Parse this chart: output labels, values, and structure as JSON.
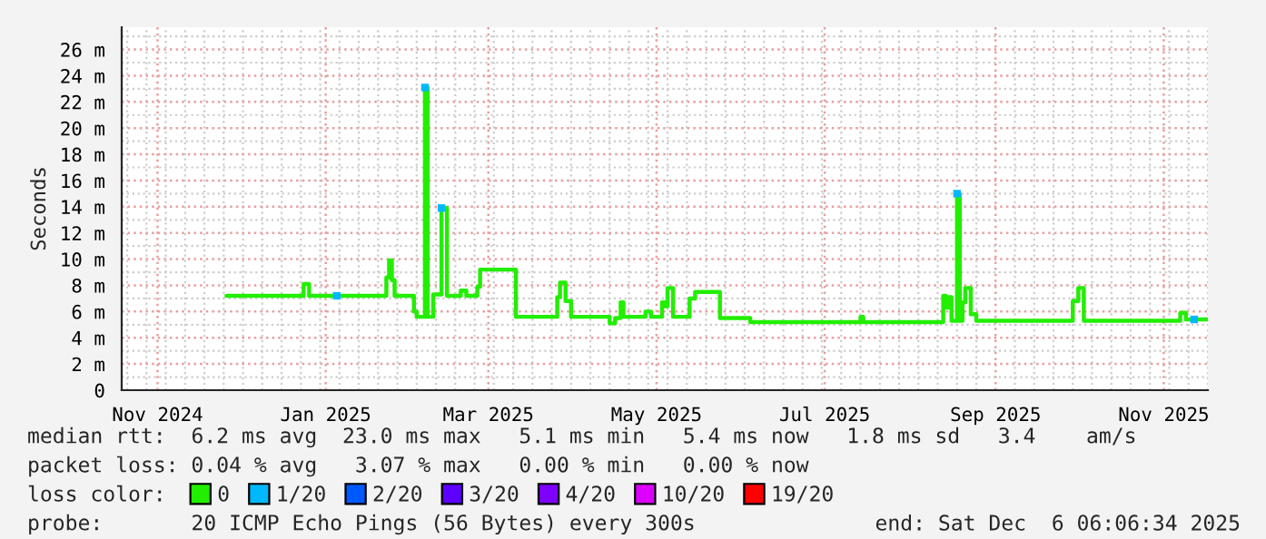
{
  "chart_data": {
    "type": "step",
    "ylabel": "Seconds",
    "xlim": [
      "2024-10-19",
      "2025-11-17"
    ],
    "xticks": [
      {
        "value": "2024-11-01",
        "label": "Nov 2024"
      },
      {
        "value": "2025-01-01",
        "label": "Jan 2025"
      },
      {
        "value": "2025-03-01",
        "label": "Mar 2025"
      },
      {
        "value": "2025-05-01",
        "label": "May 2025"
      },
      {
        "value": "2025-07-01",
        "label": "Jul 2025"
      },
      {
        "value": "2025-09-01",
        "label": "Sep 2025"
      },
      {
        "value": "2025-11-01",
        "label": "Nov 2025"
      }
    ],
    "ylim": [
      0,
      27.7
    ],
    "yticks": [
      0,
      {
        "value": 2,
        "label": "2 m"
      },
      {
        "value": 4,
        "label": "4 m"
      },
      {
        "value": 6,
        "label": "6 m"
      },
      {
        "value": 8,
        "label": "8 m"
      },
      {
        "value": 10,
        "label": "10 m"
      },
      {
        "value": 12,
        "label": "12 m"
      },
      {
        "value": 14,
        "label": "14 m"
      },
      {
        "value": 16,
        "label": "16 m"
      },
      {
        "value": 18,
        "label": "18 m"
      },
      {
        "value": 20,
        "label": "20 m"
      },
      {
        "value": 22,
        "label": "22 m"
      },
      {
        "value": 24,
        "label": "24 m"
      },
      {
        "value": 26,
        "label": "26 m"
      }
    ],
    "grid": true,
    "legend": "bottom",
    "series": [
      {
        "name": "0",
        "color": "#22ee00",
        "x": [
          "2024-11-26",
          "2024-12-24",
          "2024-12-26",
          "2025-01-23",
          "2025-01-24",
          "2025-01-25",
          "2025-01-26",
          "2025-02-02",
          "2025-02-03",
          "2025-02-06",
          "2025-02-07",
          "2025-02-09",
          "2025-02-12",
          "2025-02-14",
          "2025-02-19",
          "2025-02-21",
          "2025-02-25",
          "2025-02-26",
          "2025-03-11",
          "2025-03-26",
          "2025-03-27",
          "2025-03-29",
          "2025-03-31",
          "2025-04-14",
          "2025-04-16",
          "2025-04-18",
          "2025-04-19",
          "2025-04-27",
          "2025-04-29",
          "2025-05-03",
          "2025-05-04",
          "2025-05-05",
          "2025-05-07",
          "2025-05-13",
          "2025-05-15",
          "2025-05-24",
          "2025-06-04",
          "2025-07-14",
          "2025-07-15",
          "2025-08-13",
          "2025-08-14",
          "2025-08-15",
          "2025-08-16",
          "2025-08-18",
          "2025-08-19",
          "2025-08-20",
          "2025-08-21",
          "2025-08-23",
          "2025-08-25",
          "2025-09-29",
          "2025-10-01",
          "2025-10-03",
          "2025-11-07",
          "2025-11-09",
          "2025-11-17"
        ],
        "values": [
          7.2,
          8.1,
          7.2,
          8.6,
          9.9,
          8.4,
          7.2,
          6.0,
          5.6,
          23.1,
          5.6,
          7.3,
          13.9,
          7.2,
          7.6,
          7.2,
          7.9,
          9.2,
          5.6,
          7.1,
          8.2,
          6.8,
          5.6,
          5.1,
          5.5,
          6.7,
          5.6,
          6.0,
          5.6,
          6.7,
          6.4,
          7.8,
          5.6,
          7.0,
          7.5,
          5.5,
          5.2,
          5.6,
          5.2,
          7.2,
          6.3,
          7.1,
          5.3,
          15.0,
          5.3,
          6.7,
          7.8,
          5.8,
          5.3,
          6.8,
          7.8,
          5.3,
          5.9,
          5.4,
          5.4
        ]
      },
      {
        "name": "1/20",
        "color": "#00b8ff",
        "type": "scatter",
        "x": [
          "2025-01-05",
          "2025-02-06",
          "2025-02-12",
          "2025-08-18",
          "2025-11-12"
        ],
        "values": [
          7.2,
          23.1,
          13.9,
          15.0,
          5.4
        ]
      },
      {
        "name": "2/20",
        "color": "#0059ff",
        "type": "scatter"
      },
      {
        "name": "3/20",
        "color": "#5e00ff",
        "type": "scatter"
      },
      {
        "name": "4/20",
        "color": "#7e00ff",
        "type": "scatter"
      },
      {
        "name": "10/20",
        "color": "#dd00ff",
        "type": "scatter"
      },
      {
        "name": "19/20",
        "color": "#ff0000",
        "type": "scatter"
      }
    ],
    "annotations": [
      "median rtt:  6.2 ms avg  23.0 ms max   5.1 ms min   5.4 ms now   1.8 ms sd   3.4    am/s",
      "packet loss: 0.04 % avg   3.07 % max   0.00 % min   0.00 % now",
      "loss color:",
      "probe:       20 ICMP Echo Pings (56 Bytes) every 300s",
      "end: Sat Dec  6 06:06:34 2025"
    ]
  }
}
